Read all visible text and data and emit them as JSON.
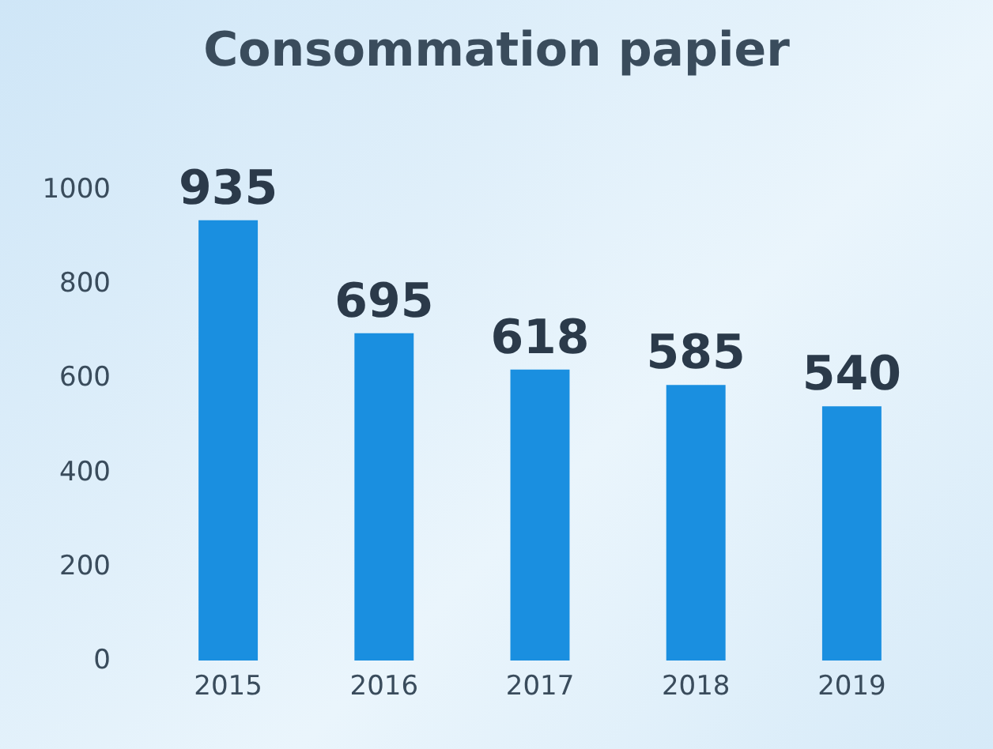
{
  "chart_data": {
    "type": "bar",
    "title": "Consommation papier",
    "categories": [
      "2015",
      "2016",
      "2017",
      "2018",
      "2019"
    ],
    "values": [
      935,
      695,
      618,
      585,
      540
    ],
    "color": "#1a8fe0",
    "ylim": [
      0,
      1000
    ],
    "yticks": [
      0,
      200,
      400,
      600,
      800,
      1000
    ],
    "grid": false,
    "data_labels": true
  }
}
